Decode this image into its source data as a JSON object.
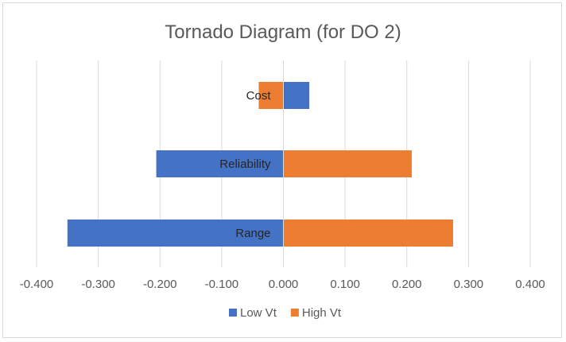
{
  "chart_data": {
    "type": "bar",
    "orientation": "horizontal",
    "title": "Tornado Diagram (for DO 2)",
    "categories": [
      "Cost",
      "Reliability",
      "Range"
    ],
    "series": [
      {
        "name": "Low Vt",
        "values": [
          0.042,
          -0.206,
          -0.35
        ]
      },
      {
        "name": "High Vt",
        "values": [
          -0.04,
          0.208,
          0.275
        ]
      }
    ],
    "xlim": [
      -0.4,
      0.4
    ],
    "x_ticks": [
      "-0.400",
      "-0.300",
      "-0.200",
      "-0.100",
      "0.000",
      "0.100",
      "0.200",
      "0.300",
      "0.400"
    ],
    "grid": true,
    "legend": "bottom",
    "colors": {
      "Low Vt": "#4472c4",
      "High Vt": "#ed7d31",
      "grid": "#d9d9d9"
    }
  }
}
